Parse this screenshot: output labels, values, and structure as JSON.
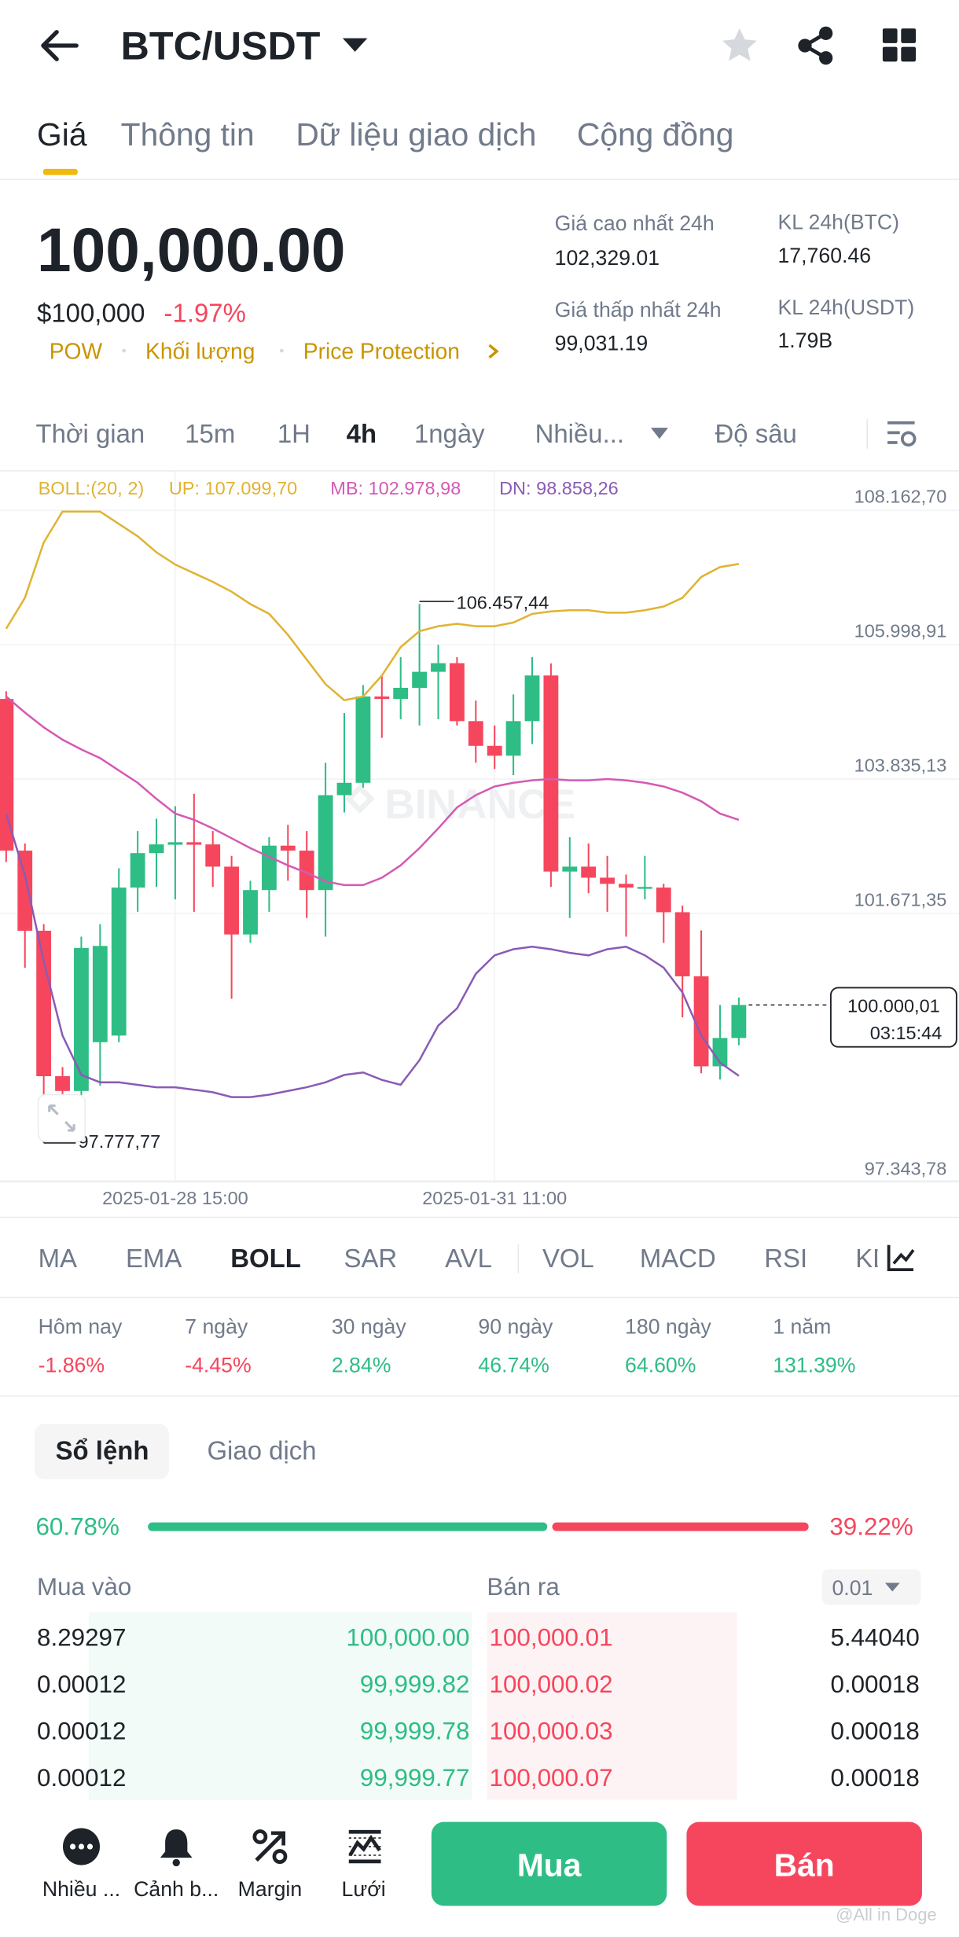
{
  "header": {
    "pair": "BTC/USDT"
  },
  "tabs": [
    "Giá",
    "Thông tin",
    "Dữ liệu giao dịch",
    "Cộng đồng"
  ],
  "price": {
    "last": "100,000.00",
    "usd": "$100,000",
    "change": "-1.97%",
    "tags": [
      "POW",
      "Khối lượng",
      "Price Protection"
    ]
  },
  "stats": [
    {
      "label": "Giá cao nhất 24h",
      "value": "102,329.01"
    },
    {
      "label": "Giá thấp nhất 24h",
      "value": "99,031.19"
    },
    {
      "label": "KL 24h(BTC)",
      "value": "17,760.46"
    },
    {
      "label": "KL 24h(USDT)",
      "value": "1.79B"
    }
  ],
  "intervals": [
    "Thời gian",
    "15m",
    "1H",
    "4h",
    "1ngày",
    "Nhiều...",
    "Độ sâu"
  ],
  "chart_data": {
    "type": "candlestick",
    "indicator": "BOLL:(20, 2)",
    "watermark": "BINANCE",
    "categories": [
      null,
      null,
      null,
      null,
      null,
      null,
      null,
      null,
      null,
      "2025-01-28 15:00",
      null,
      null,
      null,
      null,
      null,
      null,
      null,
      null,
      null,
      null,
      null,
      null,
      null,
      null,
      null,
      null,
      "2025-01-31 11:00",
      null,
      null,
      null,
      null,
      null,
      null,
      null,
      null,
      null,
      null,
      null,
      null,
      null
    ],
    "open": [
      104927,
      102485,
      101195,
      98853,
      98615,
      99400,
      99507,
      101890,
      102445,
      102580,
      102620,
      102585,
      102227,
      101135,
      101850,
      102565,
      102485,
      101850,
      103378,
      103577,
      104967,
      104927,
      105106,
      105364,
      105503,
      104570,
      104172,
      104013,
      104570,
      105305,
      102148,
      102227,
      102049,
      101950,
      101890,
      101890,
      101493,
      100461,
      99012,
      99468
    ],
    "high": [
      105050,
      102600,
      101300,
      99000,
      101100,
      101300,
      102200,
      102800,
      103000,
      103200,
      103400,
      102800,
      102400,
      102000,
      102700,
      102900,
      102800,
      103900,
      104700,
      105150,
      105300,
      105600,
      106457.44,
      105800,
      105600,
      104900,
      104500,
      105000,
      105600,
      105500,
      102700,
      102600,
      102400,
      102100,
      102400,
      101950,
      101600,
      101200,
      100000,
      100120
    ],
    "low": [
      102300,
      100600,
      97777.77,
      98300,
      98500,
      98700,
      99400,
      101500,
      101900,
      101700,
      101500,
      101900,
      100100,
      101000,
      101500,
      102000,
      101400,
      101100,
      103100,
      103500,
      104300,
      104600,
      104500,
      104600,
      104500,
      103900,
      103800,
      103700,
      104200,
      101900,
      101400,
      101800,
      101500,
      101100,
      101700,
      101000,
      99800,
      98900,
      98800,
      99350
    ],
    "close": [
      102485,
      101195,
      98853,
      98615,
      100917,
      100950,
      101890,
      102445,
      102585,
      102620,
      102580,
      102227,
      101135,
      101850,
      102565,
      102485,
      101850,
      103378,
      103577,
      104967,
      104927,
      105106,
      105364,
      105503,
      104570,
      104172,
      104013,
      104570,
      105305,
      102148,
      102227,
      102049,
      101950,
      101890,
      101900,
      101493,
      100461,
      99012,
      99468,
      100000.01
    ],
    "up_color": "#2ebd85",
    "down_color": "#f6465d",
    "series": [
      {
        "name": "UP: 107.099,70",
        "color": "#e0b331",
        "values": [
          106058,
          106555,
          107448,
          107944,
          107944,
          107944,
          107746,
          107547,
          107289,
          107091,
          106952,
          106813,
          106654,
          106455,
          106297,
          105959,
          105562,
          105165,
          104907,
          104967,
          105304,
          105761,
          106019,
          106098,
          106138,
          106098,
          106098,
          106158,
          106297,
          106336,
          106356,
          106356,
          106317,
          106317,
          106356,
          106416,
          106555,
          106892,
          107051,
          107099.7
        ]
      },
      {
        "name": "MB: 102.978,98",
        "color": "#d45ab4",
        "values": [
          104967,
          104709,
          104470,
          104272,
          104113,
          103974,
          103776,
          103577,
          103319,
          103081,
          102982,
          102843,
          102684,
          102525,
          102386,
          102247,
          102128,
          101989,
          101930,
          101930,
          102049,
          102247,
          102525,
          102843,
          103180,
          103379,
          103518,
          103577,
          103617,
          103637,
          103617,
          103617,
          103637,
          103617,
          103577,
          103518,
          103418,
          103279,
          103081,
          102978.98
        ]
      },
      {
        "name": "DN: 98.858,26",
        "color": "#8a5bb5",
        "values": [
          103081,
          102088,
          100699,
          99508,
          98873,
          98754,
          98754,
          98714,
          98674,
          98674,
          98635,
          98595,
          98515,
          98515,
          98555,
          98615,
          98674,
          98754,
          98873,
          98912,
          98793,
          98714,
          99111,
          99667,
          99945,
          100500,
          100798,
          100897,
          100937,
          100897,
          100838,
          100798,
          100897,
          100937,
          100798,
          100600,
          100203,
          99508,
          99071,
          98858.26
        ]
      }
    ],
    "ylim": [
      97166,
      108599
    ],
    "yticks": [
      {
        "value": 108162.7,
        "label": "108.162,70"
      },
      {
        "value": 105998.91,
        "label": "105.998,91"
      },
      {
        "value": 103835.13,
        "label": "103.835,13"
      },
      {
        "value": 101671.35,
        "label": "101.671,35"
      },
      {
        "value": 97343.78,
        "label": "97.343,78"
      }
    ],
    "grid": true,
    "annotations": [
      {
        "value": 106457.44,
        "label": "106.457,44"
      },
      {
        "value": 97777.77,
        "label": "97.777,77"
      }
    ],
    "last_price": {
      "value": 100000.01,
      "label": "100.000,01"
    },
    "countdown": "03:15:44"
  },
  "indicators": [
    "MA",
    "EMA",
    "BOLL",
    "SAR",
    "AVL",
    "VOL",
    "MACD",
    "RSI",
    "KDJ"
  ],
  "performance": [
    {
      "label": "Hôm nay",
      "value": "-1.86%"
    },
    {
      "label": "7 ngày",
      "value": "-4.45%"
    },
    {
      "label": "30 ngày",
      "value": "2.84%"
    },
    {
      "label": "90 ngày",
      "value": "46.74%"
    },
    {
      "label": "180 ngày",
      "value": "64.60%"
    },
    {
      "label": "1 năm",
      "value": "131.39%"
    }
  ],
  "orderbook": {
    "tabs": [
      "Sổ lệnh",
      "Giao dịch"
    ],
    "buy_ratio": "60.78%",
    "sell_ratio": "39.22%",
    "buy_header": "Mua vào",
    "sell_header": "Bán ra",
    "precision": "0.01",
    "rows": [
      [
        "8.29297",
        "100,000.00",
        "100,000.01",
        "5.44040"
      ],
      [
        "0.00012",
        "99,999.82",
        "100,000.02",
        "0.00018"
      ],
      [
        "0.00012",
        "99,999.78",
        "100,000.03",
        "0.00018"
      ],
      [
        "0.00012",
        "99,999.77",
        "100,000.07",
        "0.00018"
      ]
    ]
  },
  "bottom": {
    "actions": [
      "Nhiều ...",
      "Cảnh b...",
      "Margin",
      "Lưới"
    ],
    "buy": "Mua",
    "sell": "Bán"
  },
  "watermark": "@All in Doge"
}
